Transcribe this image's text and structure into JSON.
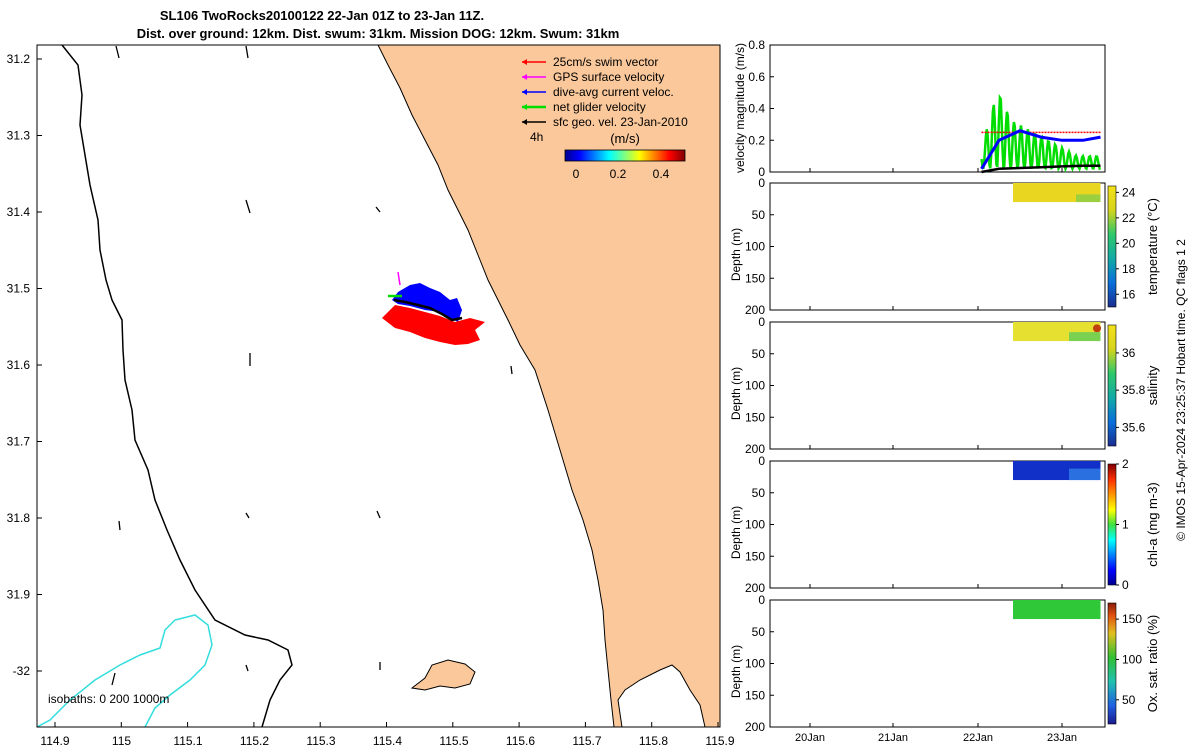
{
  "title": {
    "line1": "SL106 TwoRocks20100122 22-Jan 01Z to 23-Jan 11Z.",
    "line2": "Dist. over ground: 12km. Dist. swum: 31km. Mission DOG: 12km. Swum: 31km"
  },
  "map": {
    "xticks": [
      "114.9",
      "115",
      "115.1",
      "115.2",
      "115.3",
      "115.4",
      "115.5",
      "115.6",
      "115.7",
      "115.8",
      "115.9"
    ],
    "yticks": [
      "31.2",
      "31.3",
      "31.4",
      "31.5",
      "31.6",
      "31.7",
      "31.8",
      "31.9",
      "-32"
    ],
    "legend": [
      {
        "label": "25cm/s swim vector",
        "color": "#ff0000"
      },
      {
        "label": "GPS surface velocity",
        "color": "#ff00ff"
      },
      {
        "label": "dive-avg current veloc.",
        "color": "#0000ff"
      },
      {
        "label": "net glider velocity",
        "color": "#00dd00"
      },
      {
        "label": "sfc geo. vel. 23-Jan-2010",
        "color": "#000000"
      }
    ],
    "time_label": "4h",
    "colorbar_title": "(m/s)",
    "colorbar_ticks": [
      "0",
      "0.2",
      "0.4"
    ],
    "isobath_label": "isobaths: 0   200  1000m",
    "colors": {
      "land": "#fac89b",
      "shelf_isobath": "#33dddd",
      "coast": "#000000"
    }
  },
  "right_panels": {
    "xticks": [
      "20Jan",
      "21Jan",
      "22Jan",
      "23Jan"
    ],
    "velocity_panel": {
      "ylabel": "velocity magnitude (m/s)",
      "yticks": [
        "0",
        "0.2",
        "0.4",
        "0.6",
        "0.8"
      ]
    },
    "depth_yticks": [
      "0",
      "50",
      "100",
      "150",
      "200"
    ],
    "depth_ylabel": "Depth (m)",
    "panels": [
      {
        "name": "temperature",
        "colorbar_label": "temperature (°C)",
        "cticks": [
          "16",
          "18",
          "20",
          "22",
          "24"
        ]
      },
      {
        "name": "salinity",
        "colorbar_label": "salinity",
        "cticks": [
          "35.6",
          "35.8",
          "36"
        ]
      },
      {
        "name": "chl-a",
        "colorbar_label": "chl-a (mg m-3)",
        "cticks": [
          "0",
          "1",
          "2"
        ]
      },
      {
        "name": "oxygen",
        "colorbar_label": "Ox. sat. ratio (%)",
        "cticks": [
          "50",
          "100",
          "150"
        ]
      }
    ],
    "credit": "© IMOS 15-Apr-2024 23:25:37 Hobart time. QC flags 1  2"
  },
  "chart_data": [
    {
      "type": "scatter",
      "title": "SL106 TwoRocks20100122 22-Jan 01Z to 23-Jan 11Z.",
      "xlim": [
        114.86,
        115.9
      ],
      "ylim": [
        -32.07,
        -31.17
      ],
      "legend_position": "top-right",
      "glider_track": {
        "lon": [
          115.42,
          115.44,
          115.46,
          115.48,
          115.5,
          115.52
        ],
        "lat": [
          -31.505,
          -31.515,
          -31.525,
          -31.535,
          -31.545,
          -31.545
        ]
      },
      "geostrophic_vectors": [
        {
          "lon": 114.98,
          "lat": -31.18,
          "u": 0.02,
          "v": -0.18
        },
        {
          "lon": 115.19,
          "lat": -31.18,
          "u": 0.02,
          "v": -0.16
        },
        {
          "lon": 115.19,
          "lat": -31.38,
          "u": 0.04,
          "v": -0.16
        },
        {
          "lon": 115.39,
          "lat": -31.39,
          "u": 0.06,
          "v": -0.06
        },
        {
          "lon": 115.19,
          "lat": -31.59,
          "u": 0.0,
          "v": -0.14
        },
        {
          "lon": 114.99,
          "lat": -31.79,
          "u": 0.0,
          "v": -0.14
        },
        {
          "lon": 115.39,
          "lat": -31.79,
          "u": 0.04,
          "v": -0.08
        },
        {
          "lon": 115.19,
          "lat": -32.0,
          "u": 0.04,
          "v": -0.08
        },
        {
          "lon": 115.39,
          "lat": -32.0,
          "u": 0.0,
          "v": -0.1
        }
      ]
    },
    {
      "type": "line",
      "ylabel": "velocity magnitude (m/s)",
      "ylim": [
        0,
        0.8
      ],
      "x": [
        "22Jan 01Z",
        "22Jan 06Z",
        "22Jan 12Z",
        "22Jan 18Z",
        "23Jan 00Z",
        "23Jan 06Z",
        "23Jan 11Z"
      ],
      "series": [
        {
          "color": "#0000ff",
          "values": [
            0.02,
            0.2,
            0.26,
            0.22,
            0.2,
            0.2,
            0.22
          ]
        },
        {
          "color": "#ff0000",
          "values": [
            0.25,
            0.25,
            0.25,
            0.25,
            0.25,
            0.25,
            0.25
          ]
        },
        {
          "color": "#00dd00",
          "values": [
            0.05,
            0.48,
            0.25,
            0.12,
            0.08,
            0.07,
            0.1
          ]
        },
        {
          "color": "#000000",
          "values": [
            0.0,
            0.02,
            0.025,
            0.03,
            0.035,
            0.04,
            0.04
          ]
        }
      ]
    },
    {
      "type": "heatmap",
      "ylabel": "Depth (m)",
      "ylim": [
        0,
        200
      ],
      "x_span": [
        "22Jan 12Z",
        "23Jan 11Z"
      ],
      "depth_range": [
        0,
        30
      ],
      "variable": "temperature",
      "typical_value": 22.5,
      "clim": [
        15,
        24.5
      ]
    },
    {
      "type": "heatmap",
      "ylabel": "Depth (m)",
      "ylim": [
        0,
        200
      ],
      "x_span": [
        "22Jan 12Z",
        "23Jan 11Z"
      ],
      "depth_range": [
        0,
        30
      ],
      "variable": "salinity",
      "typical_value": 35.95,
      "clim": [
        35.5,
        36.15
      ]
    },
    {
      "type": "heatmap",
      "ylabel": "Depth (m)",
      "ylim": [
        0,
        200
      ],
      "x_span": [
        "22Jan 12Z",
        "23Jan 11Z"
      ],
      "depth_range": [
        0,
        30
      ],
      "variable": "chl-a",
      "typical_value": 0.2,
      "clim": [
        0,
        2
      ]
    },
    {
      "type": "heatmap",
      "ylabel": "Depth (m)",
      "ylim": [
        0,
        200
      ],
      "x_span": [
        "22Jan 12Z",
        "23Jan 11Z"
      ],
      "depth_range": [
        0,
        30
      ],
      "variable": "oxygen",
      "typical_value": 100,
      "clim": [
        20,
        170
      ]
    }
  ]
}
